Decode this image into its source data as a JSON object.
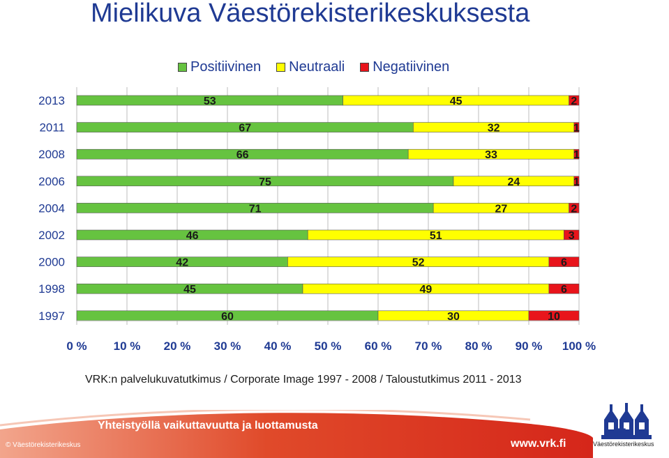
{
  "header": {
    "title": "Mielikuva Väestörekisterikeskuksesta"
  },
  "chart_data": {
    "type": "bar",
    "orientation": "horizontal",
    "stacked": true,
    "title": "Mielikuva Väestörekisterikeskuksesta",
    "categories": [
      "2013",
      "2011",
      "2008",
      "2006",
      "2004",
      "2002",
      "2000",
      "1998",
      "1997"
    ],
    "series": [
      {
        "name": "Positiivinen",
        "color": "#66c340",
        "values": [
          53,
          67,
          66,
          75,
          71,
          46,
          42,
          45,
          60
        ]
      },
      {
        "name": "Neutraali",
        "color": "#ffff00",
        "values": [
          45,
          32,
          33,
          24,
          27,
          51,
          52,
          49,
          30
        ]
      },
      {
        "name": "Negatiivinen",
        "color": "#e8141b",
        "values": [
          2,
          1,
          1,
          1,
          2,
          3,
          6,
          6,
          10
        ]
      }
    ],
    "x_ticks": [
      "0 %",
      "10 %",
      "20 %",
      "30 %",
      "40 %",
      "50 %",
      "60 %",
      "70 %",
      "80 %",
      "90 %",
      "100 %"
    ],
    "xlim": [
      0,
      100
    ],
    "xlabel": "",
    "ylabel": "",
    "legend_position": "top",
    "grid": true
  },
  "source": "VRK:n palvelukuvatutkimus / Corporate Image 1997 - 2008 / Taloustutkimus 2011 - 2013",
  "footer": {
    "slogan": "Yhteistyöllä vaikuttavuutta ja luottamusta",
    "copyright": "© Väestörekisterikeskus",
    "website": "www.vrk.fi",
    "logo_text": "Väestörekisterikeskus",
    "accent_color": "#e8141b"
  }
}
